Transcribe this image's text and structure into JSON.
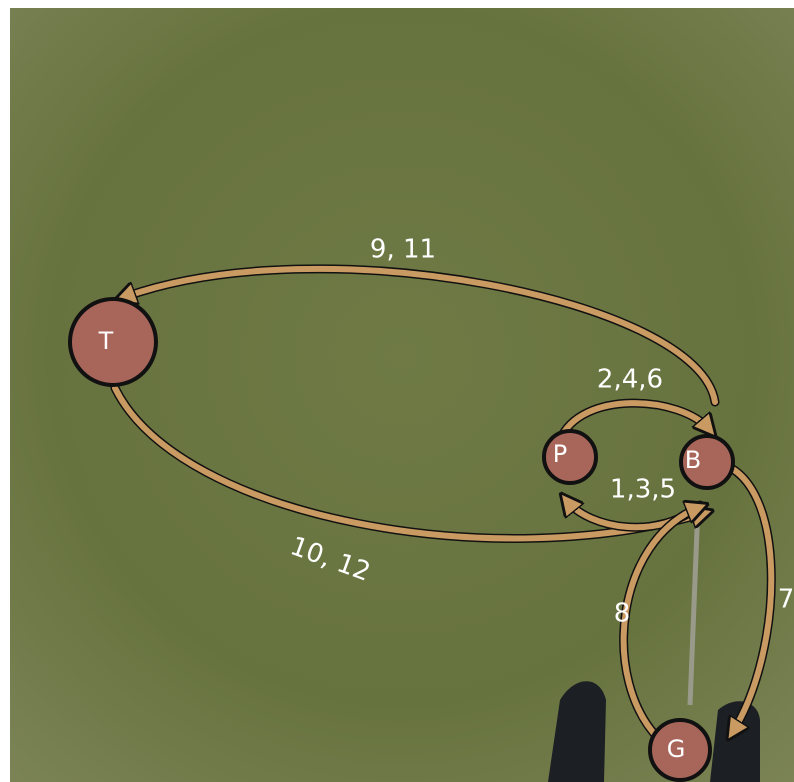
{
  "nodes": [
    {
      "label": "T"
    },
    {
      "label": "P"
    },
    {
      "label": "B"
    },
    {
      "label": "G"
    }
  ],
  "edges": [
    {
      "label": "9, 11"
    },
    {
      "label": "2,4,6"
    },
    {
      "label": "1,3,5"
    },
    {
      "label": "10, 12"
    },
    {
      "label": "8"
    },
    {
      "label": "7"
    }
  ]
}
